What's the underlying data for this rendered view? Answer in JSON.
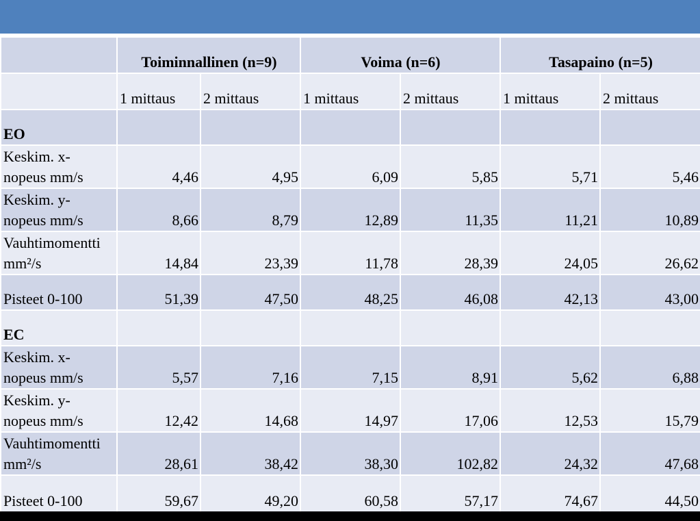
{
  "header_groups": [
    "Toiminnallinen (n=9)",
    "Voima (n=6)",
    "Tasapaino (n=5)"
  ],
  "subheaders": [
    "1 mittaus",
    "2 mittaus",
    "1 mittaus",
    "2 mittaus",
    "1 mittaus",
    "2 mittaus"
  ],
  "sections": [
    {
      "title": "EO",
      "rows": [
        {
          "label": [
            "Keskim. x-",
            "nopeus mm/s"
          ],
          "values": [
            "4,46",
            "4,95",
            "6,09",
            "5,85",
            "5,71",
            "5,46"
          ]
        },
        {
          "label": [
            "Keskim. y-",
            "nopeus mm/s"
          ],
          "values": [
            "8,66",
            "8,79",
            "12,89",
            "11,35",
            "11,21",
            "10,89"
          ]
        },
        {
          "label": [
            "Vauhtimomentti",
            "mm²/s"
          ],
          "values": [
            "14,84",
            "23,39",
            "11,78",
            "28,39",
            "24,05",
            "26,62"
          ]
        },
        {
          "label": [
            "Pisteet 0-100"
          ],
          "values": [
            "51,39",
            "47,50",
            "48,25",
            "46,08",
            "42,13",
            "43,00"
          ]
        }
      ]
    },
    {
      "title": "EC",
      "rows": [
        {
          "label": [
            "Keskim. x-",
            "nopeus mm/s"
          ],
          "values": [
            "5,57",
            "7,16",
            "7,15",
            "8,91",
            "5,62",
            "6,88"
          ]
        },
        {
          "label": [
            "Keskim. y-",
            "nopeus mm/s"
          ],
          "values": [
            "12,42",
            "14,68",
            "14,97",
            "17,06",
            "12,53",
            "15,79"
          ]
        },
        {
          "label": [
            "Vauhtimomentti",
            "mm²/s"
          ],
          "values": [
            "28,61",
            "38,42",
            "38,30",
            "102,82",
            "24,32",
            "47,68"
          ]
        },
        {
          "label": [
            "Pisteet 0-100"
          ],
          "values": [
            "59,67",
            "49,20",
            "60,58",
            "57,17",
            "74,67",
            "44,50"
          ]
        }
      ]
    }
  ],
  "colors": {
    "title_bar": "#4f81bd",
    "row_dark": "#cfd5e7",
    "row_light": "#e8ebf4"
  }
}
